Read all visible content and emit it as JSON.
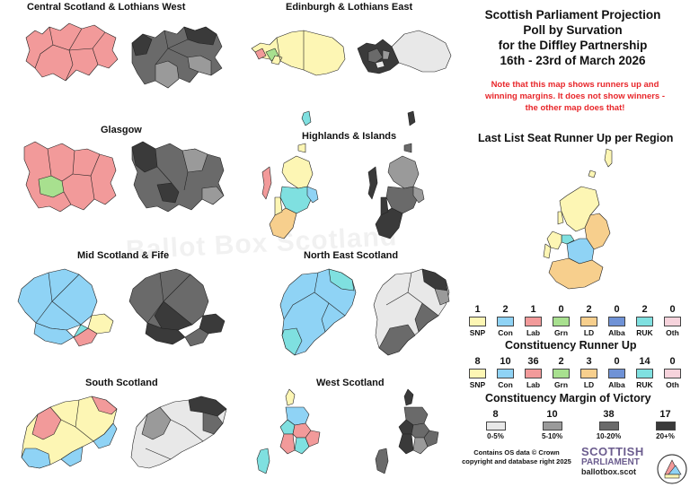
{
  "region_titles": {
    "central": "Central Scotland & Lothians West",
    "edinburgh": "Edinburgh & Lothians East",
    "glasgow": "Glasgow",
    "highlands": "Highlands & Islands",
    "mid": "Mid Scotland & Fife",
    "northeast": "North East Scotland",
    "south": "South Scotland",
    "west": "West Scotland"
  },
  "watermark": "Ballot Box Scotland",
  "title_lines": [
    "Scottish Parliament Projection",
    "Poll by Survation",
    "for the Diffley Partnership",
    "16th - 23rd of March 2026"
  ],
  "note_lines": [
    "Note that this map shows runners up and",
    "winning margins. It does not show winners -",
    "the other map does that!"
  ],
  "list_runner_up": {
    "title": "Last List Seat Runner Up per Region",
    "parties": [
      {
        "label": "SNP",
        "count": "1",
        "color": "#fdf6b4"
      },
      {
        "label": "Con",
        "count": "2",
        "color": "#8fd3f5"
      },
      {
        "label": "Lab",
        "count": "1",
        "color": "#f29a9a"
      },
      {
        "label": "Grn",
        "count": "0",
        "color": "#a8e08f"
      },
      {
        "label": "LD",
        "count": "2",
        "color": "#f7cf8d"
      },
      {
        "label": "Alba",
        "count": "0",
        "color": "#6f92d6"
      },
      {
        "label": "RUK",
        "count": "2",
        "color": "#7fe0e0"
      },
      {
        "label": "Oth",
        "count": "0",
        "color": "#f6d3dc"
      }
    ]
  },
  "constituency_runner_up": {
    "title": "Constituency Runner Up",
    "parties": [
      {
        "label": "SNP",
        "count": "8",
        "color": "#fdf6b4"
      },
      {
        "label": "Con",
        "count": "10",
        "color": "#8fd3f5"
      },
      {
        "label": "Lab",
        "count": "36",
        "color": "#f29a9a"
      },
      {
        "label": "Grn",
        "count": "2",
        "color": "#a8e08f"
      },
      {
        "label": "LD",
        "count": "3",
        "color": "#f7cf8d"
      },
      {
        "label": "Alba",
        "count": "0",
        "color": "#6f92d6"
      },
      {
        "label": "RUK",
        "count": "14",
        "color": "#7fe0e0"
      },
      {
        "label": "Oth",
        "count": "0",
        "color": "#f6d3dc"
      }
    ]
  },
  "margin": {
    "title": "Constituency Margin of Victory",
    "bands": [
      {
        "count": "8",
        "label": "0-5%",
        "color": "#e8e8e8"
      },
      {
        "count": "10",
        "label": "5-10%",
        "color": "#9a9a9a"
      },
      {
        "count": "38",
        "label": "10-20%",
        "color": "#6a6a6a"
      },
      {
        "count": "17",
        "label": "20+%",
        "color": "#3a3a3a"
      }
    ]
  },
  "credit_lines": [
    "Contains OS data © Crown",
    "copyright and database right 2025"
  ],
  "brand": {
    "line1": "SCOTTISH",
    "line2": "PARLIAMENT",
    "line3": "ballotbox.scot"
  },
  "colors": {
    "snp": "#fdf6b4",
    "con": "#8fd3f5",
    "lab": "#f29a9a",
    "grn": "#a8e08f",
    "ld": "#f7cf8d",
    "ruk": "#7fe0e0",
    "m_light": "#e8e8e8",
    "m_mid": "#9a9a9a",
    "m_dark": "#6a6a6a",
    "m_darkest": "#3a3a3a",
    "note_red": "#e8262a",
    "brand_purple": "#6b5c8e"
  }
}
